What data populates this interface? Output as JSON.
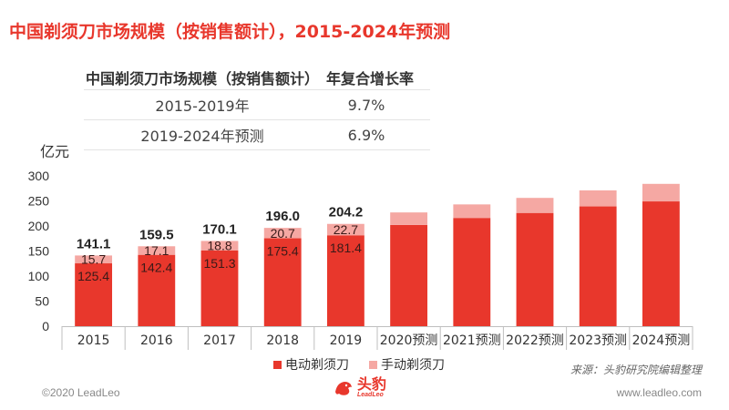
{
  "title": "中国剃须刀市场规模（按销售额计），2015-2024年预测",
  "cagr_table": {
    "header_col1": "中国剃须刀市场规模（按销售额计）",
    "header_col2": "年复合增长率",
    "rows": [
      {
        "period": "2015-2019年",
        "rate": "9.7%"
      },
      {
        "period": "2019-2024年预测",
        "rate": "6.9%"
      }
    ]
  },
  "unit_label": "亿元",
  "legend": {
    "electric": "电动剃须刀",
    "manual": "手动剃须刀"
  },
  "source": "来源：头豹研究院编辑整理",
  "footer": {
    "copyright": "©2020 LeadLeo",
    "website": "www.leadleo.com",
    "logo_cn": "头豹",
    "logo_en": "LeadLeo"
  },
  "colors": {
    "accent": "#e8372c",
    "electric": "#e8372c",
    "manual": "#f5a8a3"
  },
  "chart_data": {
    "type": "bar",
    "stacked": true,
    "categories": [
      "2015",
      "2016",
      "2017",
      "2018",
      "2019",
      "2020预测",
      "2021预测",
      "2022预测",
      "2023预测",
      "2024预测"
    ],
    "series": [
      {
        "name": "电动剃须刀",
        "values": [
          125.4,
          142.4,
          151.3,
          175.4,
          181.4,
          202,
          216,
          226,
          239,
          249
        ]
      },
      {
        "name": "手动剃须刀",
        "values": [
          15.7,
          17.1,
          18.8,
          20.7,
          22.7,
          25,
          27,
          30,
          32,
          35
        ]
      }
    ],
    "totals": [
      141.1,
      159.5,
      170.1,
      196.0,
      204.2
    ],
    "labels_electric": [
      "125.4",
      "142.4",
      "151.3",
      "175.4",
      "181.4"
    ],
    "labels_manual": [
      "15.7",
      "17.1",
      "18.8",
      "20.7",
      "22.7"
    ],
    "labels_total": [
      "141.1",
      "159.5",
      "170.1",
      "196.0",
      "204.2"
    ],
    "yticks": [
      "0",
      "50",
      "100",
      "150",
      "200",
      "250",
      "300"
    ],
    "ylim": [
      0,
      300
    ],
    "grid": false,
    "legend_position": "bottom"
  }
}
